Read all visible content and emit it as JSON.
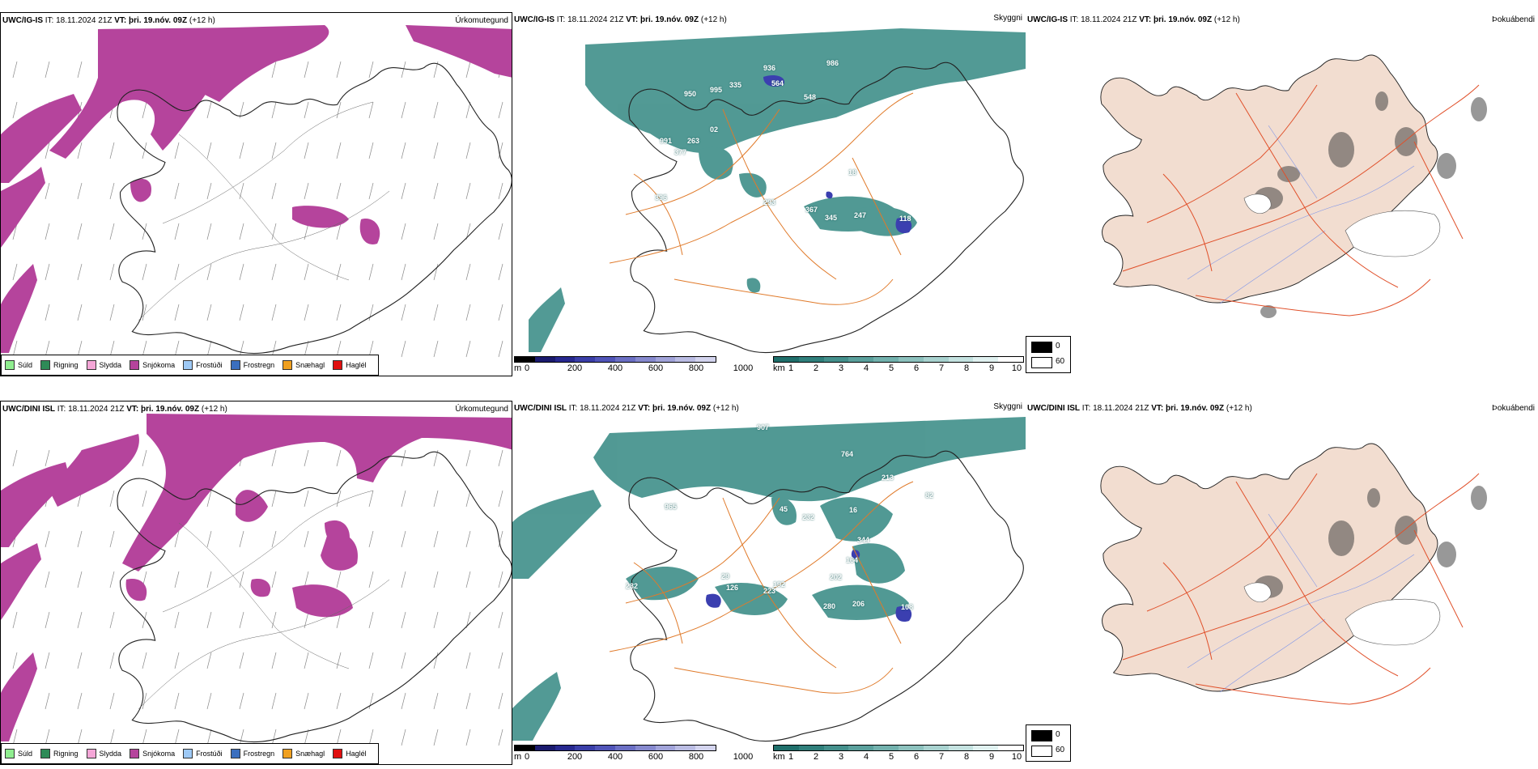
{
  "rows": [
    {
      "model": "UWC/IG-IS",
      "it_label": "IT:",
      "it_value": "18.11.2024 21Z",
      "vt_label": "VT:",
      "vt_value": "þri. 19.nóv. 09Z",
      "lead": "(+12 h)",
      "cloud_labels": [
        "936",
        "986",
        "950",
        "995",
        "335",
        "564",
        "548",
        "991",
        "263",
        "377",
        "02",
        "18",
        "396",
        "293",
        "367",
        "345",
        "247",
        "118"
      ]
    },
    {
      "model": "UWC/DINI ISL",
      "it_label": "IT:",
      "it_value": "18.11.2024 21Z",
      "vt_label": "VT:",
      "vt_value": "þri. 19.nóv. 09Z",
      "lead": "(+12 h)",
      "cloud_labels": [
        "907",
        "764",
        "213",
        "965",
        "45",
        "232",
        "82",
        "16",
        "344",
        "164",
        "202",
        "223",
        "192",
        "126",
        "232",
        "280",
        "206",
        "108",
        "29"
      ]
    }
  ],
  "panel_titles": {
    "precip_type": "Úrkomutegund",
    "visibility": "Skyggni",
    "fog": "Þokuábendi"
  },
  "precip_legend": [
    {
      "label": "Súld",
      "color": "#90ee90"
    },
    {
      "label": "Rigning",
      "color": "#2e8b57"
    },
    {
      "label": "Slydda",
      "color": "#f4a6d7"
    },
    {
      "label": "Snjókoma",
      "color": "#b5449c"
    },
    {
      "label": "Frostúði",
      "color": "#9ec9f5"
    },
    {
      "label": "Frostregn",
      "color": "#3b6fbf"
    },
    {
      "label": "Snæhagl",
      "color": "#f0a020"
    },
    {
      "label": "Haglél",
      "color": "#e01010"
    }
  ],
  "height_colorbar": {
    "unit": "m",
    "ticks": [
      "0",
      "200",
      "400",
      "600",
      "800",
      "1000"
    ],
    "colors": [
      "#000000",
      "#1a1a6e",
      "#27288f",
      "#3a3ea8",
      "#5054b8",
      "#6b6fc4",
      "#8689ce",
      "#a1a3d9",
      "#babce3",
      "#d3d4ee"
    ]
  },
  "visibility_colorbar": {
    "unit": "km",
    "ticks": [
      "1",
      "2",
      "3",
      "4",
      "5",
      "6",
      "7",
      "8",
      "9",
      "10"
    ],
    "colors": [
      "#1f6f6b",
      "#2f7f7b",
      "#44908c",
      "#5aa09c",
      "#72b1ad",
      "#8cc1bd",
      "#a8d2cf",
      "#c4e2e0",
      "#e0f1f0",
      "#ffffff"
    ]
  },
  "fog_legend": {
    "items": [
      {
        "label": "0",
        "color": "#000000"
      },
      {
        "label": "60",
        "color": "#ffffff"
      }
    ]
  },
  "colors": {
    "snow": "#b5449c",
    "cloud": "#3f8f89",
    "low_cloud": "#3b3fb0",
    "roads": "#e07a2a",
    "land_fog": "#f2ddd0",
    "rivers": "#7e95e8",
    "fog_roads": "#e0502a"
  }
}
